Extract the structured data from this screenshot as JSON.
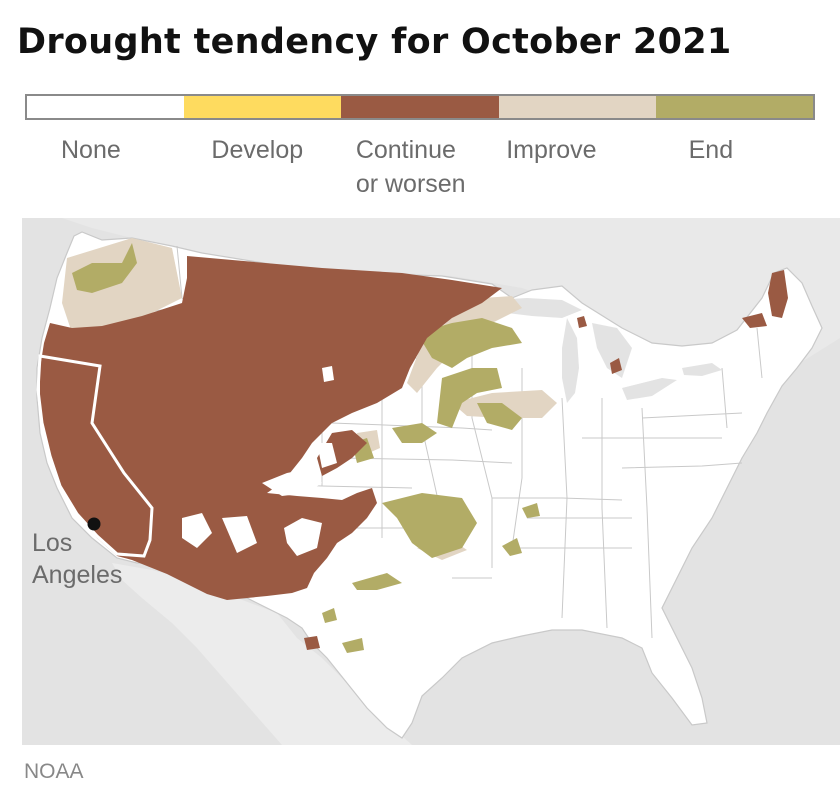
{
  "title": "Drought tendency for October 2021",
  "legend": [
    {
      "label": "None",
      "color": "#ffffff"
    },
    {
      "label": "Develop",
      "color": "#fedb5f"
    },
    {
      "label": "Continue\nor worsen",
      "color": "#9a5a43"
    },
    {
      "label": "Improve",
      "color": "#e2d5c3"
    },
    {
      "label": "End",
      "color": "#b2ac66"
    }
  ],
  "map": {
    "background_color": "#e3e3e3",
    "land_color": "#ffffff",
    "border_color": "#c9c9c9",
    "city": {
      "name": "Los\nAngeles",
      "marker_color": "#111111"
    }
  },
  "source": "NOAA"
}
